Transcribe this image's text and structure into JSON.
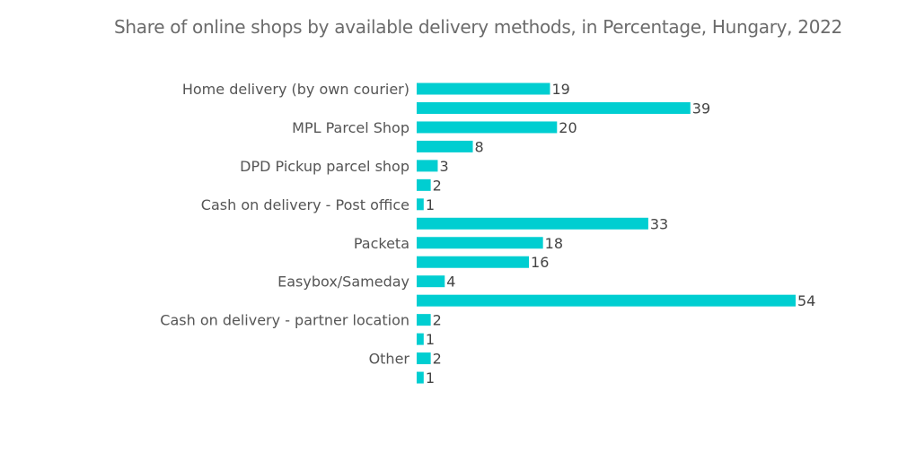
{
  "chart_data": {
    "type": "bar",
    "orientation": "horizontal",
    "title": "Share of online shops by available delivery methods, in Percentage, Hungary, 2022",
    "categories": [
      "Home delivery (by own courier)",
      "",
      "MPL Parcel Shop",
      "",
      "DPD Pickup parcel shop",
      "",
      "Cash on delivery - Post office",
      "",
      "Packeta",
      "",
      "Easybox/Sameday",
      "",
      "Cash on delivery - partner location",
      "",
      "Other",
      ""
    ],
    "values": [
      19,
      39,
      20,
      8,
      3,
      2,
      1,
      33,
      18,
      16,
      4,
      54,
      2,
      1,
      2,
      1
    ],
    "xlim": [
      0,
      54
    ],
    "grid": false,
    "bar_color": "#00CED1"
  }
}
